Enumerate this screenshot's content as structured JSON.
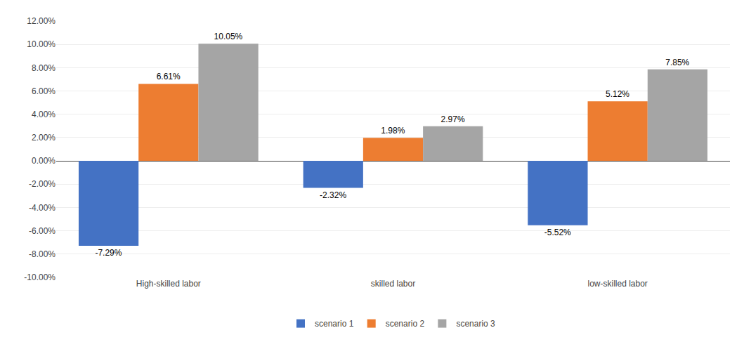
{
  "chart_data": {
    "type": "bar",
    "categories": [
      "High-skilled labor",
      "skilled labor",
      "low-skilled labor"
    ],
    "series": [
      {
        "name": "scenario 1",
        "color": "#4472C4",
        "values": [
          -7.29,
          -2.32,
          -5.52
        ],
        "value_labels": [
          "-7.29%",
          "-2.32%",
          "-5.52%"
        ]
      },
      {
        "name": "scenario 2",
        "color": "#ED7D31",
        "values": [
          6.61,
          1.98,
          5.12
        ],
        "value_labels": [
          "6.61%",
          "1.98%",
          "5.12%"
        ]
      },
      {
        "name": "scenario 3",
        "color": "#A5A5A5",
        "values": [
          10.05,
          2.97,
          7.85
        ],
        "value_labels": [
          "10.05%",
          "2.97%",
          "7.85%"
        ]
      }
    ],
    "ylim": [
      -10.0,
      12.0
    ],
    "yticks": [
      {
        "value": -10.0,
        "label": "-10.00%"
      },
      {
        "value": -8.0,
        "label": "-8.00%"
      },
      {
        "value": -6.0,
        "label": "-6.00%"
      },
      {
        "value": -4.0,
        "label": "-4.00%"
      },
      {
        "value": -2.0,
        "label": "-2.00%"
      },
      {
        "value": 0.0,
        "label": "0.00%"
      },
      {
        "value": 2.0,
        "label": "2.00%"
      },
      {
        "value": 4.0,
        "label": "4.00%"
      },
      {
        "value": 6.0,
        "label": "6.00%"
      },
      {
        "value": 8.0,
        "label": "8.00%"
      },
      {
        "value": 10.0,
        "label": "10.00%"
      },
      {
        "value": 12.0,
        "label": "12.00%"
      }
    ],
    "grid": true,
    "legend": "bottom",
    "data_labels": true
  }
}
